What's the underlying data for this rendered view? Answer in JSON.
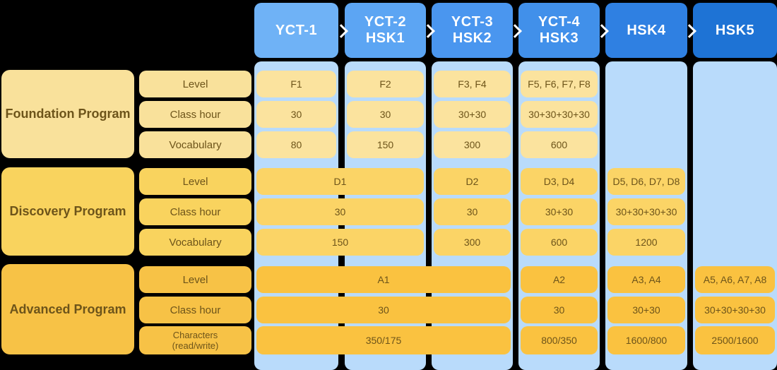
{
  "colors": {
    "background": "#000000",
    "column_band": "#B9DBFB",
    "chevron": "#FFFFFF",
    "header_text": "#FFFFFF"
  },
  "columns": [
    {
      "id": "yct1",
      "label_lines": [
        "YCT-1"
      ],
      "color": "#6FB2F6"
    },
    {
      "id": "yct2-hsk1",
      "label_lines": [
        "YCT-2",
        "HSK1"
      ],
      "color": "#5CA5F3"
    },
    {
      "id": "yct3-hsk2",
      "label_lines": [
        "YCT-3",
        "HSK2"
      ],
      "color": "#4A96EF"
    },
    {
      "id": "yct4-hsk3",
      "label_lines": [
        "YCT-4",
        "HSK3"
      ],
      "color": "#4190EA"
    },
    {
      "id": "hsk4",
      "label_lines": [
        "HSK4"
      ],
      "color": "#2F80E2"
    },
    {
      "id": "hsk5",
      "label_lines": [
        "HSK5"
      ],
      "color": "#1E73D5"
    }
  ],
  "programs": [
    {
      "id": "foundation",
      "name": "Foundation Program",
      "box_color": "#F9E19B",
      "cell_color": "#FBE39E",
      "text_color": "#6D541A",
      "rows": [
        {
          "label_lines": [
            "Level"
          ],
          "cells": [
            {
              "col": 0,
              "span": 1,
              "text": "F1"
            },
            {
              "col": 1,
              "span": 1,
              "text": "F2"
            },
            {
              "col": 2,
              "span": 1,
              "text": "F3, F4"
            },
            {
              "col": 3,
              "span": 1,
              "text": "F5, F6, F7, F8"
            }
          ]
        },
        {
          "label_lines": [
            "Class hour"
          ],
          "cells": [
            {
              "col": 0,
              "span": 1,
              "text": "30"
            },
            {
              "col": 1,
              "span": 1,
              "text": "30"
            },
            {
              "col": 2,
              "span": 1,
              "text": "30+30"
            },
            {
              "col": 3,
              "span": 1,
              "text": "30+30+30+30"
            }
          ]
        },
        {
          "label_lines": [
            "Vocabulary"
          ],
          "cells": [
            {
              "col": 0,
              "span": 1,
              "text": "80"
            },
            {
              "col": 1,
              "span": 1,
              "text": "150"
            },
            {
              "col": 2,
              "span": 1,
              "text": "300"
            },
            {
              "col": 3,
              "span": 1,
              "text": "600"
            }
          ]
        }
      ]
    },
    {
      "id": "discovery",
      "name": "Discovery Program",
      "box_color": "#F9D35E",
      "cell_color": "#FBD466",
      "text_color": "#6D541A",
      "rows": [
        {
          "label_lines": [
            "Level"
          ],
          "cells": [
            {
              "col": 0,
              "span": 2,
              "text": "D1"
            },
            {
              "col": 2,
              "span": 1,
              "text": "D2"
            },
            {
              "col": 3,
              "span": 1,
              "text": "D3, D4"
            },
            {
              "col": 4,
              "span": 1,
              "text": "D5, D6, D7, D8"
            }
          ]
        },
        {
          "label_lines": [
            "Class hour"
          ],
          "cells": [
            {
              "col": 0,
              "span": 2,
              "text": "30"
            },
            {
              "col": 2,
              "span": 1,
              "text": "30"
            },
            {
              "col": 3,
              "span": 1,
              "text": "30+30"
            },
            {
              "col": 4,
              "span": 1,
              "text": "30+30+30+30"
            }
          ]
        },
        {
          "label_lines": [
            "Vocabulary"
          ],
          "cells": [
            {
              "col": 0,
              "span": 2,
              "text": "150"
            },
            {
              "col": 2,
              "span": 1,
              "text": "300"
            },
            {
              "col": 3,
              "span": 1,
              "text": "600"
            },
            {
              "col": 4,
              "span": 1,
              "text": "1200"
            }
          ]
        }
      ]
    },
    {
      "id": "advanced",
      "name": "Advanced Program",
      "box_color": "#F7C246",
      "cell_color": "#FAC240",
      "text_color": "#6D541A",
      "rows": [
        {
          "label_lines": [
            "Level"
          ],
          "cells": [
            {
              "col": 0,
              "span": 3,
              "text": "A1"
            },
            {
              "col": 3,
              "span": 1,
              "text": "A2"
            },
            {
              "col": 4,
              "span": 1,
              "text": "A3, A4"
            },
            {
              "col": 5,
              "span": 1,
              "text": "A5, A6, A7, A8"
            }
          ]
        },
        {
          "label_lines": [
            "Class hour"
          ],
          "cells": [
            {
              "col": 0,
              "span": 3,
              "text": "30"
            },
            {
              "col": 3,
              "span": 1,
              "text": "30"
            },
            {
              "col": 4,
              "span": 1,
              "text": "30+30"
            },
            {
              "col": 5,
              "span": 1,
              "text": "30+30+30+30"
            }
          ]
        },
        {
          "label_lines": [
            "Characters",
            "(read/write)"
          ],
          "cells": [
            {
              "col": 0,
              "span": 3,
              "text": "350/175"
            },
            {
              "col": 3,
              "span": 1,
              "text": "800/350"
            },
            {
              "col": 4,
              "span": 1,
              "text": "1600/800"
            },
            {
              "col": 5,
              "span": 1,
              "text": "2500/1600"
            }
          ]
        }
      ]
    }
  ]
}
